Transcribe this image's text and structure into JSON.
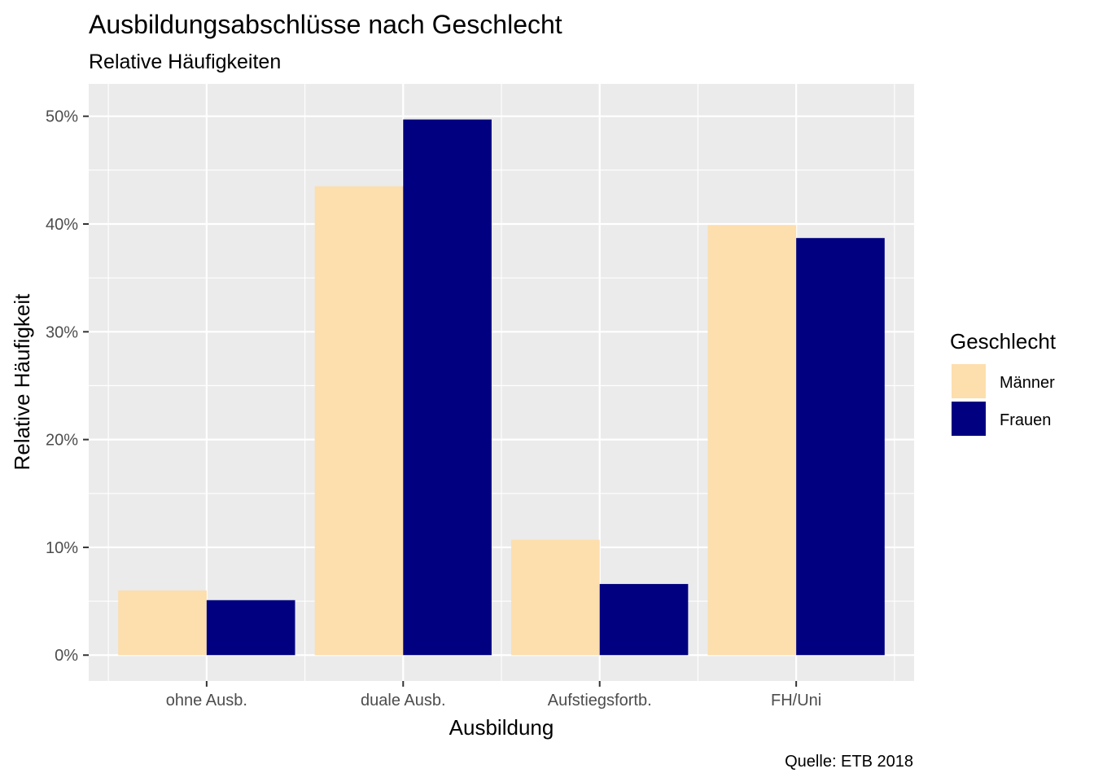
{
  "chart_data": {
    "type": "bar",
    "title": "Ausbildungsabschlüsse nach Geschlecht",
    "subtitle": "Relative Häufigkeiten",
    "caption": "Quelle: ETB 2018",
    "xlabel": "Ausbildung",
    "ylabel": "Relative Häufigkeit",
    "categories": [
      "ohne Ausb.",
      "duale Ausb.",
      "Aufstiegsfortb.",
      "FH/Uni"
    ],
    "series": [
      {
        "name": "Männer",
        "color": "#FDDEAD",
        "values": [
          0.06,
          0.435,
          0.107,
          0.399
        ]
      },
      {
        "name": "Frauen",
        "color": "#000080",
        "values": [
          0.051,
          0.497,
          0.066,
          0.387
        ]
      }
    ],
    "ylim": [
      -0.024,
      0.53
    ],
    "yticks": [
      0,
      0.1,
      0.2,
      0.3,
      0.4,
      0.5
    ],
    "ytick_labels": [
      "0%",
      "10%",
      "20%",
      "30%",
      "40%",
      "50%"
    ],
    "legend": {
      "title": "Geschlecht",
      "position": "right"
    },
    "grid": true,
    "panel_background": "#EBEBEB"
  }
}
